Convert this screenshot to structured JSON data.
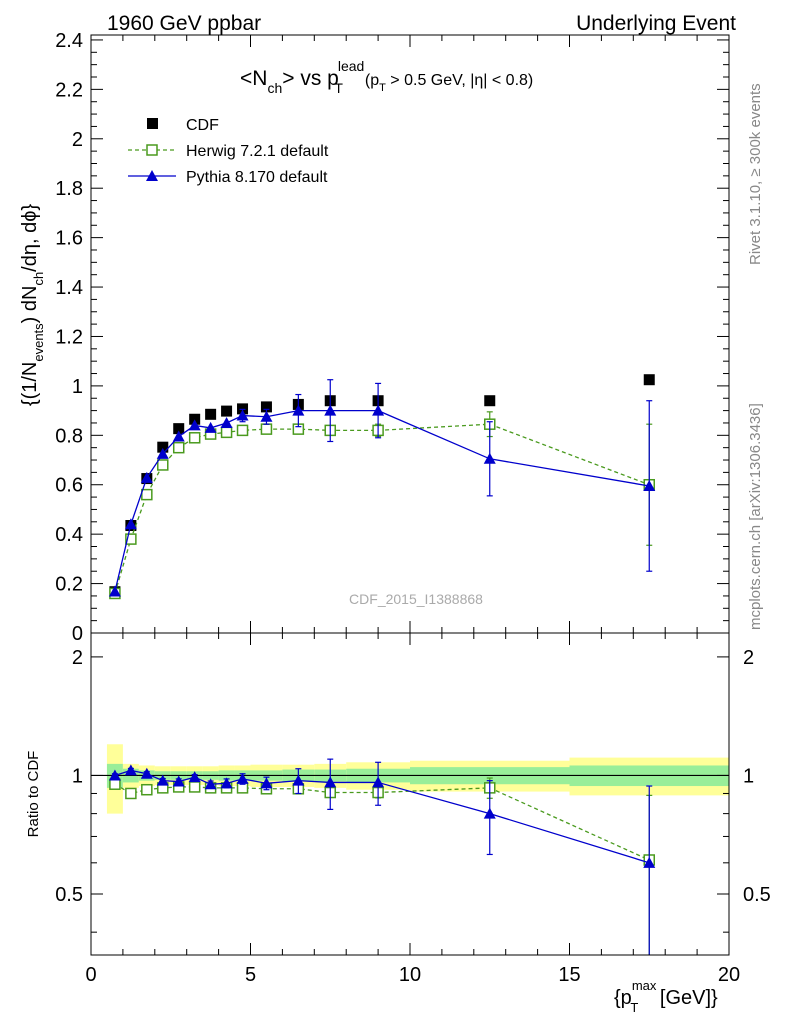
{
  "header": {
    "left": "1960 GeV ppbar",
    "right": "Underlying Event"
  },
  "side_text": {
    "rivet": "Rivet 3.1.10, ≥ 300k events",
    "mcplots": "mcplots.cern.ch [arXiv:1306.3436]"
  },
  "watermark": "CDF_2015_I1388868",
  "plot_title": {
    "main": "<N",
    "ch_sub": "ch",
    "mid": "> vs p",
    "lead_sup": "lead",
    "T_sub": "T",
    "cut": "(p",
    "cut_T": "T",
    "cut_rest": " > 0.5 GeV, |η| < 0.8)"
  },
  "ylabel_main": {
    "p1": "{(1/N",
    "sub1": "events",
    "p2": ") dN",
    "sub2": "ch",
    "p3": "/dη, dϕ}"
  },
  "ylabel_ratio": "Ratio to CDF",
  "xlabel": {
    "p1": "{p",
    "sup": "max",
    "sub": "T",
    "p2": " [GeV]}"
  },
  "legend": [
    {
      "name": "CDF",
      "color": "#000000",
      "marker": "square-filled"
    },
    {
      "name": "Herwig 7.2.1 default",
      "color": "#4a9a1e",
      "marker": "square-open",
      "dash": true
    },
    {
      "name": "Pythia 8.170 default",
      "color": "#0000cc",
      "marker": "triangle-filled"
    }
  ],
  "chart_data": {
    "type": "scatter",
    "xlim": [
      0,
      20
    ],
    "ylim": [
      0,
      2.42
    ],
    "ratio_ylim": [
      0.35,
      2.3
    ],
    "x_ticks": [
      0,
      5,
      10,
      15,
      20
    ],
    "y_ticks": [
      0,
      0.2,
      0.4,
      0.6,
      0.8,
      1,
      1.2,
      1.4,
      1.6,
      1.8,
      2,
      2.2,
      2.4
    ],
    "y_tick_labels": [
      "0",
      "0.2",
      "0.4",
      "0.6",
      "0.8",
      "1",
      "1.2",
      "1.4",
      "1.6",
      "1.8",
      "2",
      "2.2",
      "2.4"
    ],
    "ratio_ticks": [
      0.5,
      1,
      2
    ],
    "ratio_tick_labels": [
      "0.5",
      "1",
      "2"
    ],
    "cdf": {
      "x": [
        0.75,
        1.25,
        1.75,
        2.25,
        2.75,
        3.25,
        3.75,
        4.25,
        4.75,
        5.5,
        6.5,
        7.5,
        9.0,
        12.5,
        17.5
      ],
      "y": [
        0.167,
        0.435,
        0.625,
        0.752,
        0.827,
        0.865,
        0.885,
        0.898,
        0.907,
        0.915,
        0.925,
        0.94,
        0.94,
        0.94,
        1.025
      ],
      "x_lo": [
        0.5,
        1.0,
        1.5,
        2.0,
        2.5,
        3.0,
        3.5,
        4.0,
        4.5,
        5.0,
        6.0,
        7.0,
        8.0,
        10.0,
        15.0
      ],
      "x_hi": [
        1.0,
        1.5,
        2.0,
        2.5,
        3.0,
        3.5,
        4.0,
        4.5,
        5.0,
        6.0,
        7.0,
        8.0,
        10.0,
        15.0,
        20.0
      ],
      "band_stat": [
        0.07,
        0.04,
        0.03,
        0.025,
        0.025,
        0.025,
        0.025,
        0.03,
        0.03,
        0.03,
        0.035,
        0.035,
        0.04,
        0.05,
        0.06
      ],
      "band_total": [
        0.2,
        0.07,
        0.06,
        0.055,
        0.055,
        0.055,
        0.055,
        0.06,
        0.06,
        0.065,
        0.065,
        0.07,
        0.08,
        0.09,
        0.11
      ]
    },
    "series": [
      {
        "name": "Herwig 7.2.1 default",
        "color": "#4a9a1e",
        "x": [
          0.75,
          1.25,
          1.75,
          2.25,
          2.75,
          3.25,
          3.75,
          4.25,
          4.75,
          5.5,
          6.5,
          7.5,
          9.0,
          12.5,
          17.5
        ],
        "y": [
          0.16,
          0.38,
          0.56,
          0.68,
          0.75,
          0.79,
          0.805,
          0.812,
          0.82,
          0.825,
          0.825,
          0.82,
          0.82,
          0.845,
          0.6
        ],
        "yerr": [
          0.005,
          0.005,
          0.005,
          0.006,
          0.006,
          0.006,
          0.007,
          0.008,
          0.009,
          0.01,
          0.015,
          0.02,
          0.025,
          0.05,
          0.245
        ],
        "ratio": [
          0.95,
          0.9,
          0.92,
          0.93,
          0.935,
          0.935,
          0.93,
          0.93,
          0.93,
          0.925,
          0.925,
          0.905,
          0.905,
          0.93,
          0.61
        ],
        "ratio_err": [
          0.005,
          0.005,
          0.005,
          0.006,
          0.006,
          0.006,
          0.007,
          0.008,
          0.01,
          0.011,
          0.016,
          0.022,
          0.028,
          0.055,
          0.28
        ]
      },
      {
        "name": "Pythia 8.170 default",
        "color": "#0000cc",
        "x": [
          0.75,
          1.25,
          1.75,
          2.25,
          2.75,
          3.25,
          3.75,
          4.25,
          4.75,
          5.5,
          6.5,
          7.5,
          9.0,
          12.5,
          17.5
        ],
        "y": [
          0.168,
          0.44,
          0.628,
          0.725,
          0.795,
          0.84,
          0.83,
          0.85,
          0.88,
          0.875,
          0.9,
          0.9,
          0.9,
          0.705,
          0.595
        ],
        "yerr": [
          0.005,
          0.006,
          0.008,
          0.008,
          0.01,
          0.012,
          0.015,
          0.02,
          0.025,
          0.03,
          0.065,
          0.125,
          0.11,
          0.15,
          0.345
        ],
        "ratio": [
          1.0,
          1.03,
          1.01,
          0.97,
          0.965,
          0.99,
          0.95,
          0.955,
          0.98,
          0.955,
          0.97,
          0.96,
          0.96,
          0.8,
          0.6
        ],
        "ratio_err": [
          0.01,
          0.012,
          0.012,
          0.012,
          0.015,
          0.015,
          0.018,
          0.025,
          0.03,
          0.035,
          0.07,
          0.14,
          0.12,
          0.17,
          0.34
        ]
      }
    ]
  }
}
